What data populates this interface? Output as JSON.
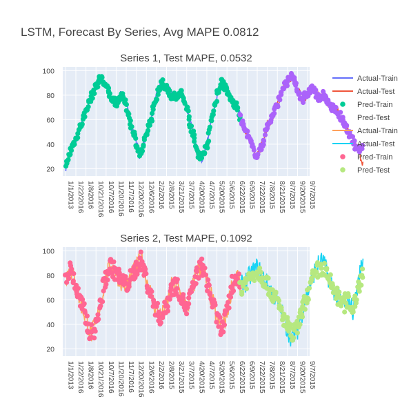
{
  "title": "LSTM, Forecast By Series, Avg MAPE 0.0812",
  "legend": {
    "position": "right",
    "items": [
      {
        "label": "Actual-Train",
        "color": "#636efa",
        "kind": "line"
      },
      {
        "label": "Actual-Test",
        "color": "#ef553b",
        "kind": "line"
      },
      {
        "label": "Pred-Train",
        "color": "#00cc96",
        "kind": "marker"
      },
      {
        "label": "Pred-Test",
        "color": "#ab63fa",
        "kind": "marker"
      },
      {
        "label": "Actual-Train",
        "color": "#ffa15a",
        "kind": "line"
      },
      {
        "label": "Actual-Test",
        "color": "#19d3f3",
        "kind": "line"
      },
      {
        "label": "Pred-Train",
        "color": "#ff6692",
        "kind": "marker"
      },
      {
        "label": "Pred-Test",
        "color": "#b6e880",
        "kind": "marker"
      }
    ]
  },
  "chart_data": [
    {
      "type": "line",
      "title": "Series 1, Test MAPE, 0.0532",
      "xlabel": "",
      "ylabel": "",
      "x_tick_labels": [
        "1/1/2013",
        "1/22/2016",
        "1/8/2016",
        "10/21/2016",
        "10/7/2016",
        "11/20/2016",
        "11/7/2016",
        "12/20/2016",
        "12/6/2016",
        "2/2/2016",
        "2/8/2015",
        "3/21/2015",
        "3/7/2015",
        "4/20/2015",
        "4/7/2015",
        "5/20/2015",
        "5/6/2015",
        "6/22/2015",
        "6/9/2015",
        "7/22/2015",
        "7/8/2015",
        "8/21/2015",
        "8/7/2015",
        "9/20/2015",
        "9/7/2015"
      ],
      "y_ticks": [
        20,
        40,
        60,
        80,
        100
      ],
      "ylim": [
        14,
        103
      ],
      "grid": true,
      "train_end_index": 17.3,
      "series": [
        {
          "name": "Actual-Train",
          "color": "#636efa",
          "mode": "line",
          "part": "train",
          "x": [
            0,
            0.3,
            0.6,
            1,
            1.5,
            2,
            2.5,
            3,
            3.5,
            4,
            4.5,
            5,
            5.5,
            6,
            6.5,
            7,
            7.3,
            7.6,
            8,
            8.5,
            9,
            9.5,
            10,
            10.5,
            11,
            11.5,
            12,
            12.5,
            13,
            13.5,
            14,
            14.5,
            15,
            15.5,
            16,
            16.5,
            17,
            17.3
          ],
          "y": [
            20,
            30,
            38,
            44,
            55,
            68,
            78,
            88,
            95,
            87,
            78,
            74,
            80,
            72,
            55,
            42,
            32,
            35,
            48,
            62,
            78,
            90,
            86,
            80,
            78,
            82,
            70,
            52,
            35,
            28,
            40,
            62,
            80,
            92,
            82,
            75,
            70,
            62
          ]
        },
        {
          "name": "Actual-Test",
          "color": "#ef553b",
          "mode": "line",
          "part": "test",
          "x": [
            17.3,
            17.6,
            18,
            18.5,
            19,
            19.5,
            20,
            20.5,
            21,
            21.5,
            22,
            22.5,
            23,
            23.5,
            24,
            24.5,
            25,
            25.5,
            26,
            26.5,
            27,
            27.5,
            28,
            28.5,
            29,
            29.5
          ],
          "y": [
            62,
            55,
            48,
            38,
            30,
            40,
            55,
            62,
            72,
            86,
            90,
            96,
            84,
            76,
            82,
            86,
            78,
            80,
            74,
            70,
            66,
            58,
            50,
            42,
            36,
            25
          ]
        },
        {
          "name": "Pred-Train",
          "color": "#00cc96",
          "mode": "markers",
          "part": "train",
          "x": [
            0,
            0.3,
            0.6,
            1,
            1.5,
            2,
            2.5,
            3,
            3.5,
            4,
            4.5,
            5,
            5.5,
            6,
            6.5,
            7,
            7.3,
            7.6,
            8,
            8.5,
            9,
            9.5,
            10,
            10.5,
            11,
            11.5,
            12,
            12.5,
            13,
            13.5,
            14,
            14.5,
            15,
            15.5,
            16,
            16.5,
            17,
            17.3
          ],
          "y": [
            20,
            30,
            38,
            44,
            55,
            68,
            78,
            88,
            95,
            87,
            78,
            74,
            80,
            72,
            55,
            42,
            32,
            35,
            48,
            62,
            78,
            90,
            86,
            80,
            78,
            82,
            70,
            52,
            35,
            28,
            40,
            62,
            80,
            92,
            82,
            75,
            70,
            62
          ]
        },
        {
          "name": "Pred-Test",
          "color": "#ab63fa",
          "mode": "markers",
          "part": "test",
          "x": [
            17.3,
            17.6,
            18,
            18.5,
            19,
            19.5,
            20,
            20.5,
            21,
            21.5,
            22,
            22.5,
            23,
            23.5,
            24,
            24.5,
            25,
            25.5,
            26,
            26.5,
            27,
            27.5,
            28,
            28.5,
            29,
            29.5
          ],
          "y": [
            62,
            55,
            48,
            38,
            30,
            40,
            55,
            62,
            72,
            86,
            90,
            96,
            84,
            76,
            82,
            86,
            78,
            80,
            74,
            70,
            66,
            58,
            50,
            42,
            36,
            38
          ]
        }
      ]
    },
    {
      "type": "line",
      "title": "Series 2, Test MAPE, 0.1092",
      "xlabel": "",
      "ylabel": "",
      "x_tick_labels": [
        "1/1/2013",
        "1/22/2016",
        "1/8/2016",
        "10/21/2016",
        "10/7/2016",
        "11/20/2016",
        "11/7/2016",
        "12/20/2016",
        "12/6/2016",
        "2/2/2016",
        "2/8/2015",
        "3/21/2015",
        "3/7/2015",
        "4/20/2015",
        "4/7/2015",
        "5/20/2015",
        "5/6/2015",
        "6/22/2015",
        "6/9/2015",
        "7/22/2015",
        "7/8/2015",
        "8/21/2015",
        "8/7/2015",
        "9/20/2015",
        "9/7/2015"
      ],
      "y_ticks": [
        20,
        40,
        60,
        80,
        100
      ],
      "ylim": [
        14,
        103
      ],
      "grid": true,
      "train_end_index": 17.3,
      "series": [
        {
          "name": "Actual-Train",
          "color": "#ffa15a",
          "mode": "line",
          "part": "train",
          "x": [
            0,
            0.5,
            1,
            1.5,
            2,
            2.5,
            3,
            3.5,
            4,
            4.5,
            5,
            5.5,
            6,
            6.5,
            7,
            7.5,
            8,
            8.5,
            9,
            9.5,
            10,
            10.5,
            11,
            11.5,
            12,
            12.5,
            13,
            13.5,
            14,
            14.5,
            15,
            15.5,
            16,
            16.5,
            17,
            17.3
          ],
          "y": [
            80,
            85,
            70,
            58,
            45,
            32,
            38,
            60,
            78,
            88,
            82,
            76,
            72,
            78,
            86,
            92,
            78,
            62,
            52,
            45,
            55,
            70,
            72,
            62,
            52,
            66,
            82,
            88,
            74,
            60,
            45,
            35,
            50,
            72,
            80,
            70
          ]
        },
        {
          "name": "Actual-Test",
          "color": "#19d3f3",
          "mode": "line",
          "part": "test",
          "x": [
            17.3,
            17.7,
            18,
            18.5,
            19,
            19.5,
            20,
            20.5,
            21,
            21.5,
            22,
            22.5,
            23,
            23.5,
            24,
            24.5,
            25,
            25.5,
            26,
            26.5,
            27,
            27.5,
            28,
            28.5,
            29,
            29.5
          ],
          "y": [
            70,
            74,
            76,
            82,
            86,
            80,
            72,
            66,
            58,
            48,
            36,
            28,
            36,
            52,
            66,
            80,
            88,
            92,
            80,
            70,
            62,
            56,
            60,
            52,
            72,
            95
          ]
        },
        {
          "name": "Pred-Train",
          "color": "#ff6692",
          "mode": "markers",
          "part": "train",
          "x": [
            0,
            0.5,
            1,
            1.5,
            2,
            2.5,
            3,
            3.5,
            4,
            4.5,
            5,
            5.5,
            6,
            6.5,
            7,
            7.5,
            8,
            8.5,
            9,
            9.5,
            10,
            10.5,
            11,
            11.5,
            12,
            12.5,
            13,
            13.5,
            14,
            14.5,
            15,
            15.5,
            16,
            16.5,
            17,
            17.3
          ],
          "y": [
            80,
            85,
            70,
            58,
            45,
            32,
            38,
            60,
            78,
            88,
            82,
            76,
            72,
            78,
            86,
            92,
            78,
            62,
            52,
            45,
            55,
            70,
            72,
            62,
            52,
            66,
            82,
            88,
            74,
            60,
            45,
            35,
            50,
            72,
            80,
            70
          ]
        },
        {
          "name": "Pred-Test",
          "color": "#b6e880",
          "mode": "markers",
          "part": "test",
          "x": [
            17.3,
            17.7,
            18,
            18.5,
            19,
            19.5,
            20,
            20.5,
            21,
            21.5,
            22,
            22.5,
            23,
            23.5,
            24,
            24.5,
            25,
            25.5,
            26,
            26.5,
            27,
            27.5,
            28,
            28.5,
            29,
            29.5
          ],
          "y": [
            70,
            74,
            76,
            80,
            84,
            80,
            72,
            66,
            58,
            48,
            38,
            30,
            38,
            52,
            64,
            76,
            84,
            86,
            78,
            70,
            62,
            56,
            60,
            52,
            70,
            84
          ]
        }
      ]
    }
  ]
}
